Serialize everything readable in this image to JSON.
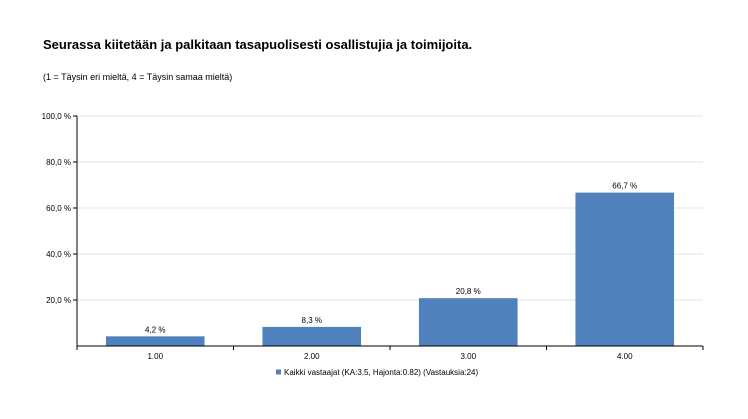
{
  "title": "Seurassa kiitetään ja palkitaan tasapuolisesti osallistujia ja toimijoita.",
  "subtitle": "(1 = Täysin eri mieltä, 4 = Täysin samaa mieltä)",
  "chart_data": {
    "type": "bar",
    "categories": [
      "1.00",
      "2.00",
      "3.00",
      "4.00"
    ],
    "series": [
      {
        "name": "Kaikki vastaajat (KA:3.5, Hajonta:0.82) (Vastauksia:24)",
        "values": [
          4.2,
          8.3,
          20.8,
          66.7
        ],
        "value_labels": [
          "4,2 %",
          "8,3 %",
          "20,8 %",
          "66,7 %"
        ],
        "color": "#4f81bd"
      }
    ],
    "ylim": [
      0,
      100
    ],
    "y_ticks": [
      20,
      40,
      60,
      80,
      100
    ],
    "y_tick_labels": [
      "20,0 %",
      "40,0 %",
      "60,0 %",
      "80,0 %",
      "100,0 %"
    ],
    "grid": true,
    "legend_position": "bottom-center",
    "xlabel": "",
    "ylabel": ""
  }
}
